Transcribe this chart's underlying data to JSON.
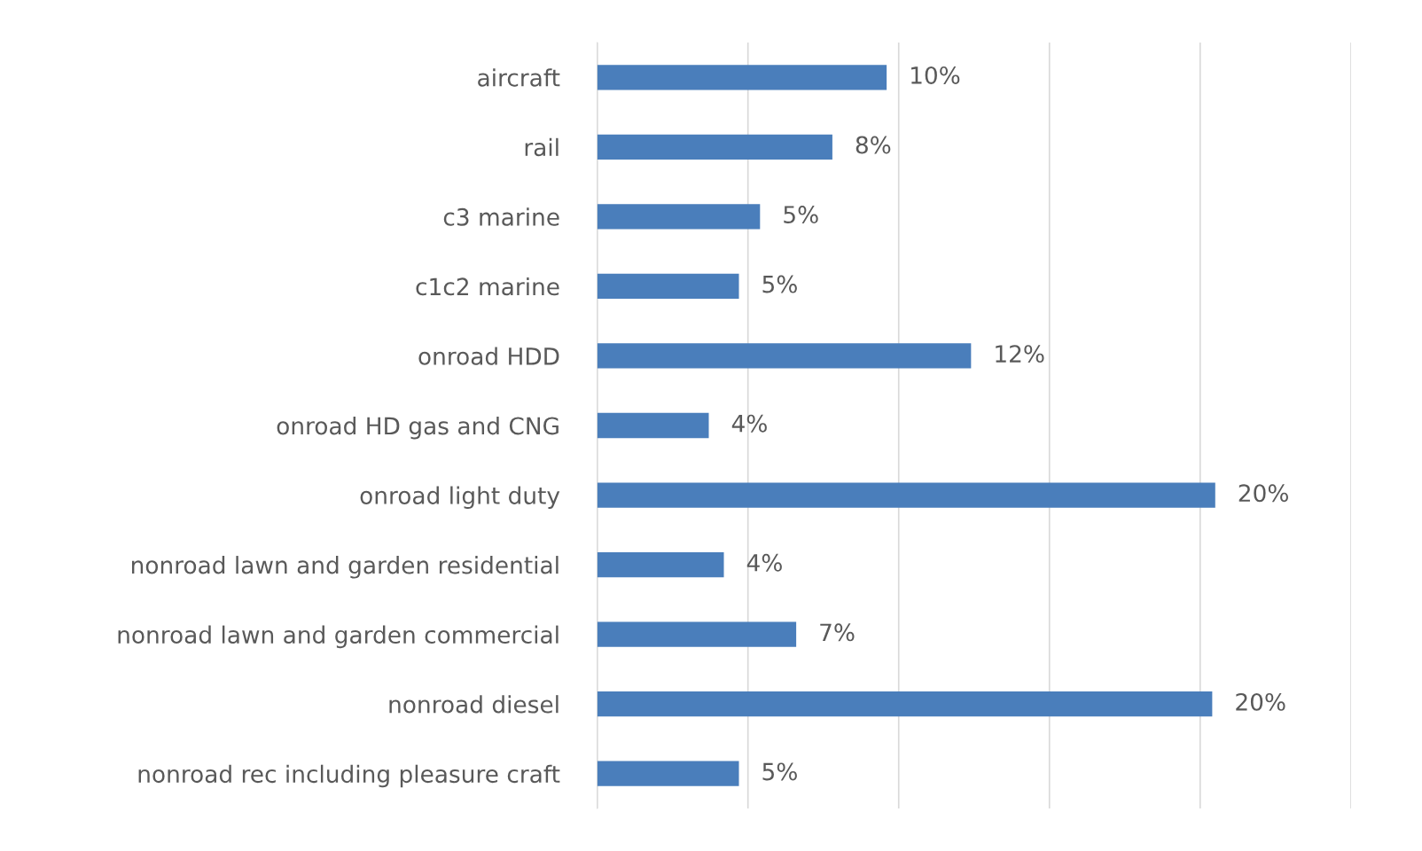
{
  "chart_data": {
    "type": "bar",
    "orientation": "horizontal",
    "categories": [
      "aircraft",
      "rail",
      "c3 marine",
      "c1c2 marine",
      "onroad HDD",
      "onroad HD gas and CNG",
      "onroad light duty",
      "nonroad lawn and garden residential",
      "nonroad lawn and garden commercial",
      "nonroad diesel",
      "nonroad rec including pleasure craft"
    ],
    "values": [
      9.6,
      7.8,
      5.4,
      4.7,
      12.4,
      3.7,
      20.5,
      4.2,
      6.6,
      20.4,
      4.7
    ],
    "value_labels": [
      "10%",
      "8%",
      "5%",
      "5%",
      "12%",
      "4%",
      "20%",
      "4%",
      "7%",
      "20%",
      "5%"
    ],
    "color": "#4a7ebb",
    "xlim": [
      0,
      25
    ],
    "xticks": [
      {
        "value": 0,
        "label": null
      },
      {
        "value": 5,
        "label": null
      },
      {
        "value": 10,
        "label": null
      },
      {
        "value": 15,
        "label": null
      },
      {
        "value": 20,
        "label": null
      },
      {
        "value": 25,
        "label": null
      }
    ],
    "grid": "x",
    "tick_labels": "y"
  }
}
